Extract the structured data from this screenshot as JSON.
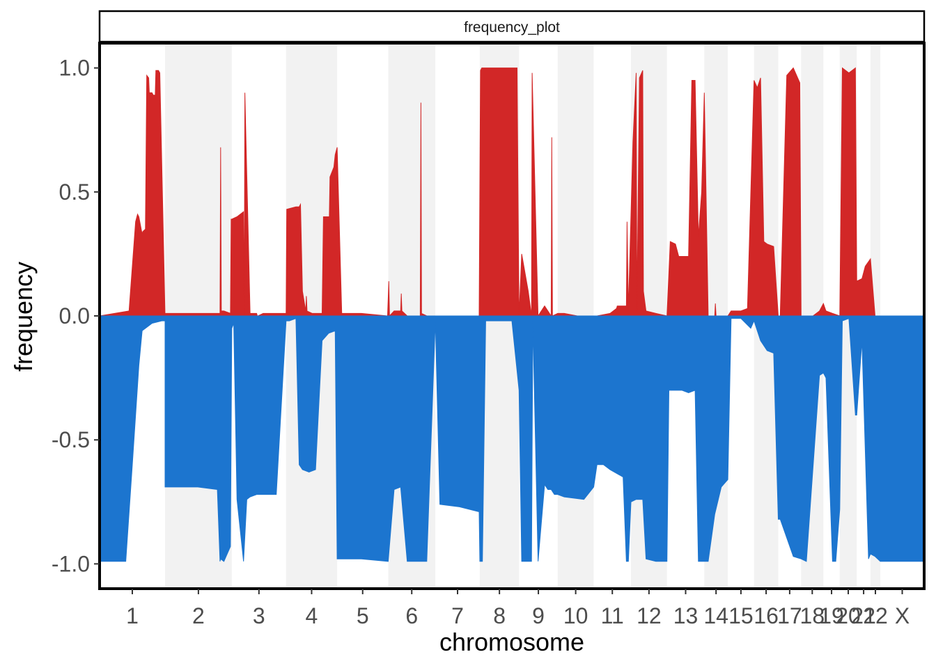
{
  "chart_data": {
    "type": "area",
    "facet_title": "frequency_plot",
    "xlabel": "chromosome",
    "ylabel": "frequency",
    "ylim": [
      -1.1,
      1.1
    ],
    "y_ticks": [
      1.0,
      0.5,
      0.0,
      -0.5,
      -1.0
    ],
    "y_tick_labels": [
      "1.0",
      "0.5",
      "0.0",
      "-0.5",
      "-1.0"
    ],
    "grid": false,
    "alternating_shading": true,
    "colors": {
      "gain": "#d22727",
      "loss": "#1c75cf",
      "band": "#f2f2f2"
    },
    "chromosomes": [
      {
        "label": "1",
        "start": 0.0,
        "end": 1.0
      },
      {
        "label": "2",
        "start": 1.0,
        "end": 2.02
      },
      {
        "label": "3",
        "start": 2.02,
        "end": 2.85
      },
      {
        "label": "4",
        "start": 2.85,
        "end": 3.63
      },
      {
        "label": "5",
        "start": 3.63,
        "end": 4.41
      },
      {
        "label": "6",
        "start": 4.41,
        "end": 5.13
      },
      {
        "label": "7",
        "start": 5.13,
        "end": 5.81
      },
      {
        "label": "8",
        "start": 5.81,
        "end": 6.41
      },
      {
        "label": "9",
        "start": 6.41,
        "end": 7.0
      },
      {
        "label": "10",
        "start": 7.0,
        "end": 7.55
      },
      {
        "label": "11",
        "start": 7.55,
        "end": 8.12
      },
      {
        "label": "12",
        "start": 8.12,
        "end": 8.67
      },
      {
        "label": "13",
        "start": 8.67,
        "end": 9.24
      },
      {
        "label": "14",
        "start": 9.24,
        "end": 9.6
      },
      {
        "label": "15",
        "start": 9.6,
        "end": 10.0
      },
      {
        "label": "16",
        "start": 10.0,
        "end": 10.37
      },
      {
        "label": "17",
        "start": 10.37,
        "end": 10.72
      },
      {
        "label": "18",
        "start": 10.72,
        "end": 11.06
      },
      {
        "label": "19",
        "start": 11.06,
        "end": 11.31
      },
      {
        "label": "20",
        "start": 11.31,
        "end": 11.57
      },
      {
        "label": "21",
        "start": 11.57,
        "end": 11.78
      },
      {
        "label": "22",
        "start": 11.78,
        "end": 11.93
      },
      {
        "label": "X",
        "start": 11.93,
        "end": 12.6
      }
    ],
    "gain_series": {
      "name": "gain",
      "x": [
        0.0,
        0.45,
        0.5,
        0.55,
        0.58,
        0.6,
        0.65,
        0.66,
        0.7,
        0.72,
        0.75,
        0.76,
        0.8,
        0.82,
        0.85,
        0.86,
        0.9,
        0.92,
        1.0,
        1.0,
        1.5,
        1.84,
        1.85,
        1.86,
        1.9,
        2.0,
        2.01,
        2.02,
        2.1,
        2.2,
        2.21,
        2.22,
        2.3,
        2.4,
        2.41,
        2.42,
        2.5,
        2.6,
        2.7,
        2.8,
        2.85,
        2.86,
        3.0,
        3.05,
        3.07,
        3.1,
        3.15,
        3.16,
        3.17,
        3.25,
        3.4,
        3.42,
        3.5,
        3.51,
        3.52,
        3.58,
        3.6,
        3.63,
        3.7,
        4.0,
        4.4,
        4.42,
        4.43,
        4.5,
        4.6,
        4.61,
        4.62,
        4.7,
        4.9,
        4.91,
        4.92,
        5.0,
        5.13,
        5.2,
        5.5,
        5.8,
        5.82,
        5.84,
        6.3,
        6.38,
        6.4,
        6.41,
        6.45,
        6.55,
        6.6,
        6.61,
        6.7,
        6.8,
        6.9,
        6.91,
        6.92,
        7.0,
        7.1,
        7.3,
        7.55,
        7.6,
        7.8,
        7.9,
        7.91,
        7.92,
        7.95,
        8.05,
        8.06,
        8.08,
        8.15,
        8.2,
        8.21,
        8.25,
        8.3,
        8.31,
        8.35,
        8.5,
        8.67,
        8.72,
        8.8,
        8.85,
        9.0,
        9.05,
        9.1,
        9.15,
        9.2,
        9.24,
        9.3,
        9.4,
        9.41,
        9.42,
        9.5,
        9.6,
        9.65,
        9.8,
        9.9,
        10.0,
        10.05,
        10.1,
        10.15,
        10.2,
        10.3,
        10.37,
        10.4,
        10.5,
        10.6,
        10.7,
        10.72,
        10.8,
        10.9,
        11.0,
        11.06,
        11.1,
        11.2,
        11.31,
        11.35,
        11.45,
        11.55,
        11.57,
        11.65,
        11.7,
        11.78,
        11.85,
        11.93,
        12.6
      ],
      "y": [
        0.0,
        0.02,
        0.2,
        0.38,
        0.41,
        0.4,
        0.33,
        0.34,
        0.35,
        0.97,
        0.96,
        0.9,
        0.9,
        0.89,
        0.89,
        0.99,
        0.99,
        0.98,
        0.0,
        0.01,
        0.01,
        0.01,
        0.68,
        0.02,
        0.02,
        0.01,
        0.39,
        0.39,
        0.4,
        0.42,
        0.0,
        0.9,
        0.01,
        0.01,
        0.0,
        0.0,
        0.01,
        0.01,
        0.01,
        0.01,
        0.01,
        0.43,
        0.44,
        0.44,
        0.45,
        0.1,
        0.02,
        0.08,
        0.02,
        0.01,
        0.01,
        0.4,
        0.4,
        0.39,
        0.56,
        0.6,
        0.65,
        0.68,
        0.01,
        0.01,
        0.0,
        0.14,
        0.0,
        0.02,
        0.02,
        0.09,
        0.02,
        0.0,
        0.0,
        0.86,
        0.01,
        0.0,
        0.0,
        0.0,
        0.0,
        0.0,
        0.99,
        1.0,
        1.0,
        1.0,
        0.3,
        0.0,
        0.25,
        0.1,
        0.0,
        0.98,
        0.0,
        0.04,
        0.0,
        0.72,
        0.0,
        0.01,
        0.01,
        0.0,
        0.0,
        0.0,
        0.01,
        0.03,
        0.04,
        0.04,
        0.04,
        0.04,
        0.38,
        0.02,
        0.7,
        0.98,
        0.02,
        0.96,
        0.99,
        0.1,
        0.02,
        0.01,
        0.0,
        0.3,
        0.29,
        0.24,
        0.24,
        0.95,
        0.95,
        0.32,
        0.5,
        0.9,
        0.0,
        0.0,
        0.05,
        0.0,
        0.0,
        0.0,
        0.02,
        0.02,
        0.03,
        0.95,
        0.92,
        0.96,
        0.3,
        0.29,
        0.28,
        0.0,
        0.0,
        0.97,
        1.0,
        0.94,
        0.0,
        0.0,
        0.0,
        0.02,
        0.05,
        0.02,
        0.01,
        0.0,
        1.0,
        0.98,
        1.0,
        0.14,
        0.15,
        0.2,
        0.23,
        0.0,
        0.0,
        0.0
      ]
    },
    "loss_series": {
      "name": "loss",
      "x": [
        0.0,
        0.3,
        0.4,
        0.5,
        0.6,
        0.65,
        0.8,
        0.95,
        1.0,
        1.0,
        1.5,
        1.8,
        1.84,
        1.85,
        1.9,
        2.0,
        2.02,
        2.05,
        2.1,
        2.2,
        2.25,
        2.3,
        2.4,
        2.5,
        2.7,
        2.85,
        2.9,
        3.0,
        3.05,
        3.1,
        3.2,
        3.3,
        3.4,
        3.5,
        3.6,
        3.63,
        3.7,
        3.8,
        4.0,
        4.41,
        4.5,
        4.6,
        4.7,
        4.8,
        4.9,
        5.0,
        5.13,
        5.2,
        5.5,
        5.8,
        5.81,
        5.85,
        5.9,
        6.3,
        6.41,
        6.45,
        6.6,
        6.62,
        6.7,
        6.8,
        6.85,
        6.9,
        6.95,
        7.0,
        7.1,
        7.4,
        7.55,
        7.6,
        7.7,
        7.8,
        8.0,
        8.05,
        8.08,
        8.12,
        8.2,
        8.3,
        8.35,
        8.5,
        8.67,
        8.7,
        8.9,
        9.0,
        9.1,
        9.15,
        9.2,
        9.24,
        9.3,
        9.4,
        9.5,
        9.6,
        9.65,
        9.8,
        9.95,
        10.0,
        10.1,
        10.2,
        10.3,
        10.37,
        10.4,
        10.6,
        10.72,
        10.8,
        11.0,
        11.06,
        11.1,
        11.2,
        11.25,
        11.31,
        11.35,
        11.45,
        11.55,
        11.57,
        11.65,
        11.75,
        11.78,
        11.85,
        11.93,
        12.6
      ],
      "y": [
        -0.99,
        -0.99,
        -0.99,
        -0.6,
        -0.2,
        -0.06,
        -0.03,
        -0.02,
        -0.02,
        -0.69,
        -0.69,
        -0.7,
        -0.99,
        -0.98,
        -0.99,
        -0.93,
        -0.05,
        -0.03,
        -0.74,
        -0.99,
        -0.74,
        -0.73,
        -0.72,
        -0.72,
        -0.72,
        -0.02,
        -0.02,
        -0.01,
        -0.6,
        -0.62,
        -0.63,
        -0.62,
        -0.1,
        -0.07,
        -0.06,
        -0.98,
        -0.98,
        -0.98,
        -0.98,
        -0.99,
        -0.7,
        -0.69,
        -0.99,
        -0.99,
        -0.99,
        -0.99,
        -0.02,
        -0.76,
        -0.77,
        -0.79,
        -0.99,
        -0.99,
        -0.02,
        -0.02,
        -0.3,
        -0.99,
        -0.99,
        -0.02,
        -0.99,
        -0.68,
        -0.7,
        -0.7,
        -0.72,
        -0.72,
        -0.73,
        -0.74,
        -0.69,
        -0.6,
        -0.6,
        -0.62,
        -0.65,
        -0.99,
        -0.99,
        -0.75,
        -0.74,
        -0.74,
        -0.98,
        -0.99,
        -0.99,
        -0.3,
        -0.3,
        -0.31,
        -0.3,
        -0.99,
        -0.99,
        -0.99,
        -0.99,
        -0.8,
        -0.69,
        -0.66,
        -0.01,
        -0.01,
        -0.05,
        -0.02,
        -0.1,
        -0.14,
        -0.15,
        -0.82,
        -0.82,
        -0.97,
        -0.98,
        -0.99,
        -0.24,
        -0.23,
        -0.25,
        -0.99,
        -0.99,
        -0.78,
        -0.02,
        -0.01,
        -0.4,
        -0.4,
        -0.1,
        -0.98,
        -0.96,
        -0.97,
        -0.99,
        -0.99
      ]
    }
  }
}
